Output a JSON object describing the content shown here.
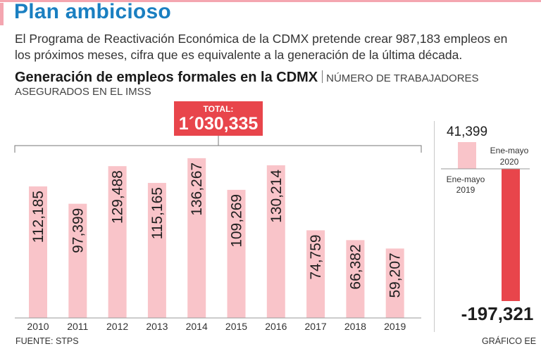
{
  "header": {
    "title": "Plan ambicioso",
    "intro": "El Programa de Reactivación Económica de la CDMX pretende crear 987,183 empleos en los próximos meses, cifra que es equivalente a la generación de la última década.",
    "subtitle": "Generación de empleos formales en la CDMX",
    "unit_line1": "NÚMERO DE TRABAJADORES",
    "unit_line2": "ASEGURADOS EN EL IMSS"
  },
  "total": {
    "label": "TOTAL:",
    "value": "1´030,335"
  },
  "colors": {
    "bar": "#f9c4c9",
    "negative": "#e8454b",
    "accent": "#e8454b",
    "title": "#1a7fc1"
  },
  "chart_data": [
    {
      "type": "bar",
      "title": "Generación de empleos formales en la CDMX",
      "categories": [
        "2010",
        "2011",
        "2012",
        "2013",
        "2014",
        "2015",
        "2016",
        "2017",
        "2018",
        "2019"
      ],
      "values": [
        112185,
        97399,
        129488,
        115165,
        136267,
        109269,
        130214,
        74759,
        66382,
        59207
      ],
      "value_labels": [
        "112,185",
        "97,399",
        "129,488",
        "115,165",
        "136,267",
        "109,269",
        "130,214",
        "74,759",
        "66,382",
        "59,207"
      ],
      "ylim": [
        0,
        150000
      ],
      "xlabel": "",
      "ylabel": "NÚMERO DE TRABAJADORES ASEGURADOS EN EL IMSS"
    },
    {
      "type": "bar",
      "categories": [
        "Ene-mayo 2019",
        "Ene-mayo 2020"
      ],
      "category_lines": [
        [
          "Ene-mayo",
          "2019"
        ],
        [
          "Ene-mayo",
          "2020"
        ]
      ],
      "values": [
        41399,
        -197321
      ],
      "value_labels": [
        "41,399",
        "-197,321"
      ],
      "ylim": [
        -200000,
        50000
      ]
    }
  ],
  "footer": {
    "source": "FUENTE: STPS",
    "credit": "GRÁFICO EE"
  }
}
